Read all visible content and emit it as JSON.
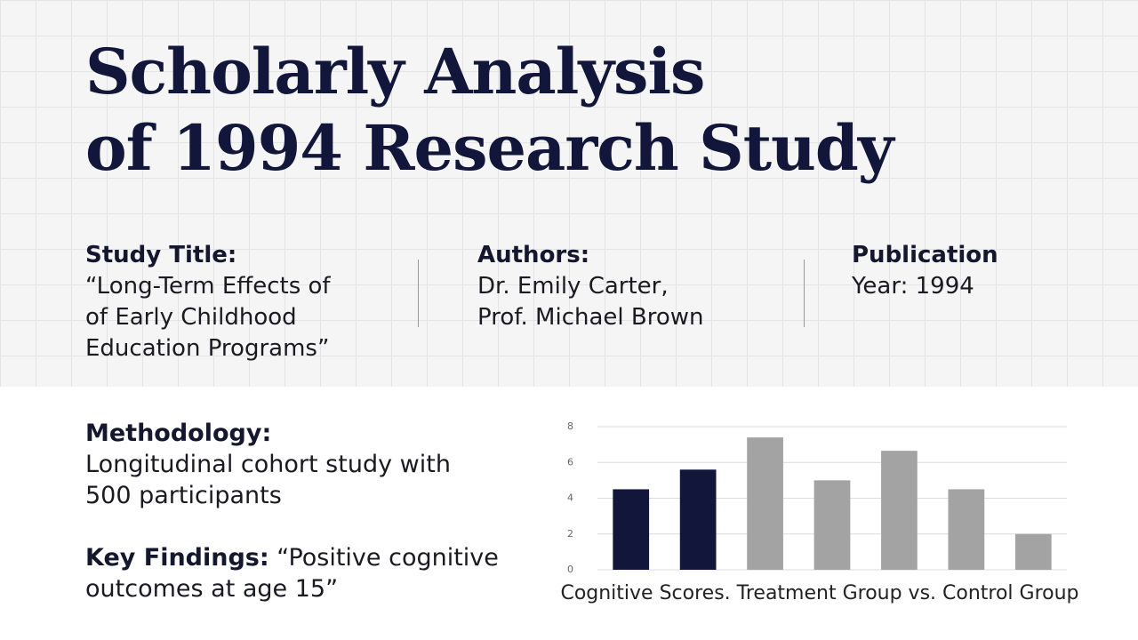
{
  "header": {
    "title_lines": [
      "Scholarly Analysis",
      "of 1994 Research Study"
    ]
  },
  "details": [
    {
      "label": "Study Title:",
      "lines": [
        "“Long-Term Effects of",
        "of Early Childhood",
        "Education Programs”"
      ]
    },
    {
      "label": "Authors:",
      "lines": [
        "Dr. Emily Carter,",
        "Prof. Michael Brown"
      ]
    },
    {
      "label": "Publication",
      "lines": [
        "Year: 1994"
      ]
    }
  ],
  "methodology": {
    "label": "Methodology:",
    "lines": [
      "Longitudinal cohort study with",
      "500 participants"
    ]
  },
  "findings": {
    "label": "Key Findings:",
    "lines": [
      "“Positive cognitive",
      "outcomes at age 15”"
    ]
  },
  "chart_data": {
    "type": "bar",
    "xlabel": "Cognitive Scores. Treatment Group vs. Control Group",
    "categories": [
      null,
      null,
      null,
      null,
      null,
      null,
      null
    ],
    "values": [
      4.5,
      5.6,
      7.4,
      5.0,
      6.65,
      4.5,
      2.0
    ],
    "colors": [
      "#11163a",
      "#11163a",
      "#a3a3a3",
      "#a3a3a3",
      "#a3a3a3",
      "#a3a3a3",
      "#a3a3a3"
    ],
    "ylim": [
      0,
      8
    ],
    "yticks": [
      0,
      2,
      4,
      6,
      8
    ],
    "grid": true
  }
}
